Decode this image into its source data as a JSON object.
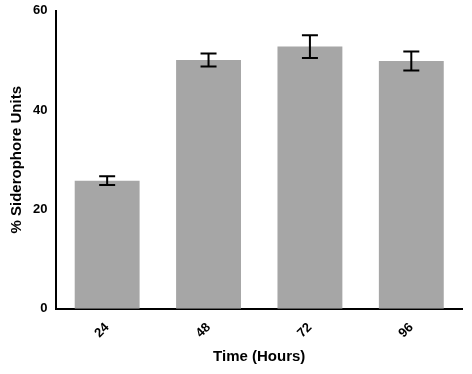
{
  "chart_data": {
    "type": "bar",
    "x_label": "Time (Hours)",
    "y_label": "% Siderophore Units",
    "categories": [
      "24",
      "48",
      "72",
      "96"
    ],
    "values": [
      25.8,
      50.1,
      52.8,
      49.9
    ],
    "errors": [
      0.9,
      1.3,
      2.3,
      1.9
    ],
    "color": "#a6a6a6",
    "ylim": [
      0,
      60
    ],
    "yticks": [
      0,
      20,
      40,
      60
    ],
    "grid": false
  }
}
